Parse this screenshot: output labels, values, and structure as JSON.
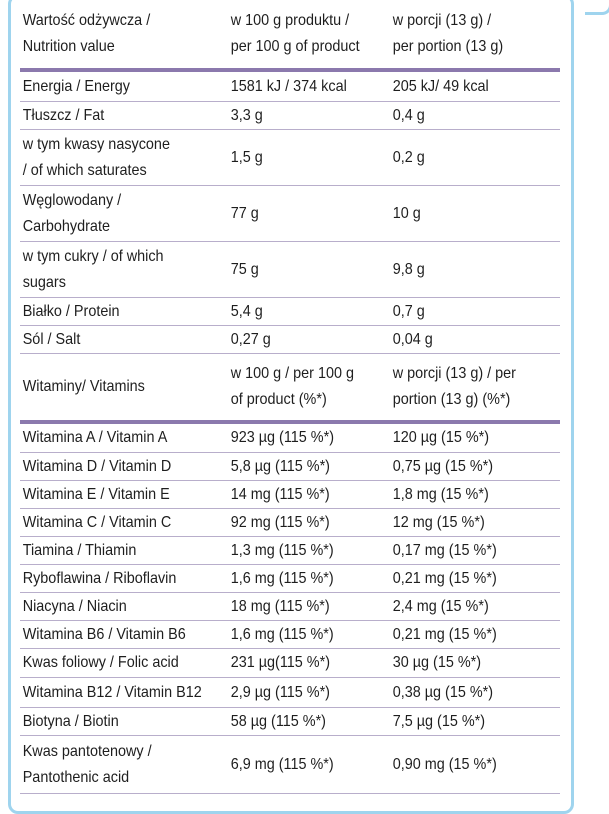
{
  "header": {
    "name": [
      "Wartość odżywcza /",
      "Nutrition value"
    ],
    "per100": [
      "w 100 g produktu /",
      "per 100 g of product"
    ],
    "portion": [
      "w porcji (13 g) /",
      "per portion (13 g)"
    ]
  },
  "nutrients": [
    {
      "name": [
        "Energia / Energy"
      ],
      "per100": "1581 kJ / 374 kcal",
      "portion": "205 kJ/ 49 kcal"
    },
    {
      "name": [
        "Tłuszcz / Fat"
      ],
      "per100": "3,3 g",
      "portion": "0,4 g"
    },
    {
      "name": [
        "w tym kwasy nasycone",
        "/ of which saturates"
      ],
      "per100": "1,5 g",
      "portion": "0,2 g"
    },
    {
      "name": [
        "Węglowodany /",
        "Carbohydrate"
      ],
      "per100": "77 g",
      "portion": "10 g"
    },
    {
      "name": [
        "w tym cukry / of which",
        "sugars"
      ],
      "per100": "75 g",
      "portion": "9,8 g"
    },
    {
      "name": [
        "Białko / Protein"
      ],
      "per100": "5,4 g",
      "portion": "0,7 g"
    },
    {
      "name": [
        "Sól / Salt"
      ],
      "per100": "0,27 g",
      "portion": "0,04 g"
    }
  ],
  "vitamins_header": {
    "name": "Witaminy/ Vitamins",
    "per100": [
      "w 100 g / per 100 g",
      "of product  (%*)"
    ],
    "portion": [
      "w porcji (13 g) / per",
      "portion (13 g) (%*)"
    ]
  },
  "vitamins": [
    {
      "name": [
        "Witamina A / Vitamin A"
      ],
      "per100": "923 µg (115 %*)",
      "portion": "120 µg (15 %*)"
    },
    {
      "name": [
        "Witamina D / Vitamin D"
      ],
      "per100": "5,8 µg (115 %*)",
      "portion": "0,75 µg (15 %*)"
    },
    {
      "name": [
        "Witamina E / Vitamin E"
      ],
      "per100": "14 mg (115 %*)",
      "portion": "1,8 mg (15 %*)"
    },
    {
      "name": [
        "Witamina C / Vitamin C"
      ],
      "per100": "92 mg (115 %*)",
      "portion": "12 mg (15 %*)"
    },
    {
      "name": [
        "Tiamina / Thiamin"
      ],
      "per100": "1,3 mg (115 %*)",
      "portion": "0,17 mg (15 %*)"
    },
    {
      "name": [
        "Ryboflawina / Riboflavin"
      ],
      "per100": "1,6 mg (115 %*)",
      "portion": "0,21 mg (15 %*)"
    },
    {
      "name": [
        "Niacyna / Niacin"
      ],
      "per100": "18 mg (115 %*)",
      "portion": "2,4 mg (15 %*)"
    },
    {
      "name": [
        "Witamina B6 / Vitamin B6"
      ],
      "per100": "1,6 mg (115 %*)",
      "portion": "0,21 mg (15 %*)"
    },
    {
      "name": [
        "Kwas foliowy / Folic acid"
      ],
      "per100": "231 µg(115 %*)",
      "portion": "30 µg  (15 %*)"
    },
    {
      "name": [
        "Witamina B12 / Vitamin B12"
      ],
      "per100": "2,9 µg (115 %*)",
      "portion": "0,38 µg (15 %*)"
    },
    {
      "name": [
        "Biotyna / Biotin"
      ],
      "per100": "58 µg (115 %*)",
      "portion": "7,5 µg (15 %*)"
    },
    {
      "name": [
        "Kwas pantotenowy /",
        "Pantothenic acid"
      ],
      "per100": "6,9 mg (115 %*)",
      "portion": "0,90 mg (15 %*)"
    }
  ]
}
